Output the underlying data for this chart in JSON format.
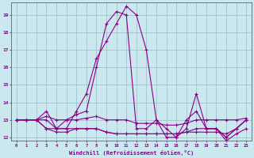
{
  "xlabel": "Windchill (Refroidissement éolien,°C)",
  "background_color": "#cce8ef",
  "grid_color": "#99bbc7",
  "line_color": "#880088",
  "xlim": [
    -0.5,
    23.5
  ],
  "ylim": [
    11.8,
    19.7
  ],
  "xticks": [
    0,
    1,
    2,
    3,
    4,
    5,
    6,
    7,
    8,
    9,
    10,
    11,
    12,
    13,
    14,
    15,
    16,
    17,
    18,
    19,
    20,
    21,
    22,
    23
  ],
  "yticks": [
    12,
    13,
    14,
    15,
    16,
    17,
    18,
    19
  ],
  "lines": [
    [
      13.0,
      13.0,
      13.0,
      13.0,
      12.5,
      12.5,
      13.5,
      14.5,
      16.5,
      17.5,
      18.5,
      19.5,
      19.0,
      17.0,
      13.0,
      12.5,
      12.0,
      12.5,
      14.5,
      12.5,
      12.5,
      12.0,
      12.5,
      13.0
    ],
    [
      13.0,
      13.0,
      13.0,
      13.2,
      13.0,
      13.0,
      13.0,
      13.1,
      13.2,
      13.0,
      13.0,
      13.0,
      12.8,
      12.8,
      12.8,
      12.7,
      12.7,
      12.8,
      13.0,
      13.0,
      13.0,
      13.0,
      13.0,
      13.1
    ],
    [
      13.0,
      13.0,
      13.0,
      12.5,
      12.3,
      12.3,
      12.5,
      12.5,
      12.5,
      12.3,
      12.2,
      12.2,
      12.2,
      12.2,
      12.2,
      12.2,
      12.2,
      12.3,
      12.3,
      12.3,
      12.3,
      12.2,
      12.5,
      13.0
    ],
    [
      13.0,
      13.0,
      13.0,
      13.5,
      12.5,
      13.0,
      13.3,
      13.5,
      16.0,
      18.5,
      19.2,
      19.0,
      12.5,
      12.5,
      13.0,
      12.0,
      12.0,
      13.0,
      13.5,
      12.5,
      12.5,
      12.0,
      12.5,
      13.0
    ],
    [
      13.0,
      13.0,
      13.0,
      12.5,
      12.5,
      12.5,
      12.5,
      12.5,
      12.5,
      12.3,
      12.2,
      12.2,
      12.2,
      12.2,
      12.2,
      12.2,
      12.2,
      12.3,
      12.5,
      12.5,
      12.5,
      11.8,
      12.2,
      12.5
    ]
  ]
}
